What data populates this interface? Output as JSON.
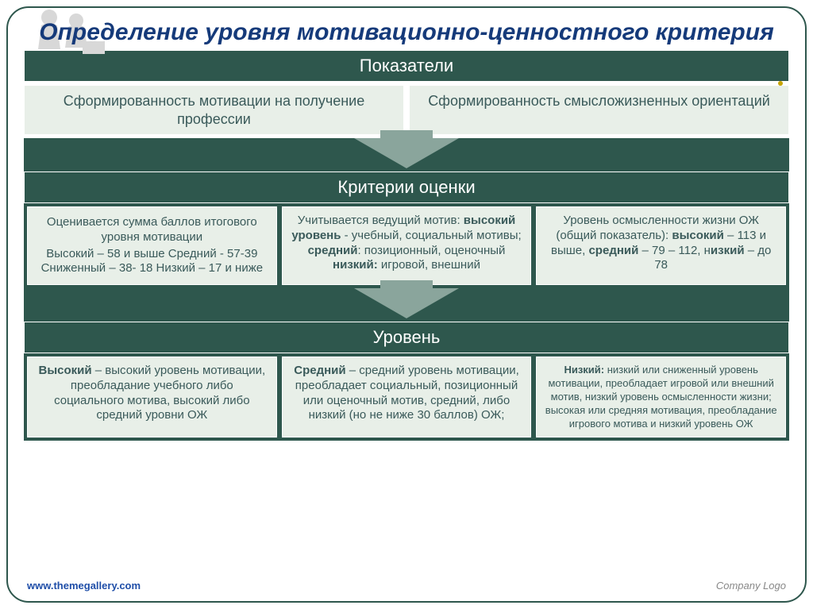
{
  "colors": {
    "dark_green": "#2e574d",
    "light_green_fill": "#e8efe8",
    "light_box_text": "#3a5a5a",
    "title_color": "#153a7a",
    "arrow_fill": "#8aa59c"
  },
  "title": "Определение уровня мотивационно-ценностного критерия",
  "section1": {
    "header": "Показатели",
    "boxes": [
      "Сформированность мотивации на получение профессии",
      "Сформированность смысложизненных ориентаций"
    ]
  },
  "section2": {
    "header": "Критерии оценки",
    "boxes": [
      {
        "p1": "Оценивается сумма баллов итогового уровня мотивации",
        "p2": "Высокий –  58 и выше Средний -  57-39 Сниженный –  38- 18 Низкий – 17 и ниже"
      },
      {
        "html": "Учитывается ведущий мотив: <b>высокий уровень</b> - учебный, социальный мотивы; <b>средний</b>: позиционный, оценочный <b>низкий:</b> игровой, внешний"
      },
      {
        "html": "Уровень осмысленности жизни ОЖ (общий показатель): <b>высокий</b> – 113 и выше, <b>средний</b> – 79 – 112, н<b>изкий</b> – до 78"
      }
    ]
  },
  "section3": {
    "header": "Уровень",
    "boxes": [
      {
        "html": "<b>Высокий</b> – высокий уровень мотивации, преобладание учебного либо социального мотива, высокий либо средний уровни ОЖ"
      },
      {
        "html": "<b>Средний</b> – средний уровень мотивации, преобладает социальный, позиционный или оценочный мотив, средний, либо низкий  (но не ниже 30 баллов)  ОЖ;"
      },
      {
        "html": "<b>Низкий:</b>   низкий или сниженный уровень мотивации, преобладает игровой или внешний мотив, низкий уровень осмысленности жизни; высокая или средняя мотивация, преобладание игрового мотива и низкий  уровень ОЖ"
      }
    ]
  },
  "footer": {
    "url": "www.themegallery.com",
    "logo": "Company Logo"
  }
}
